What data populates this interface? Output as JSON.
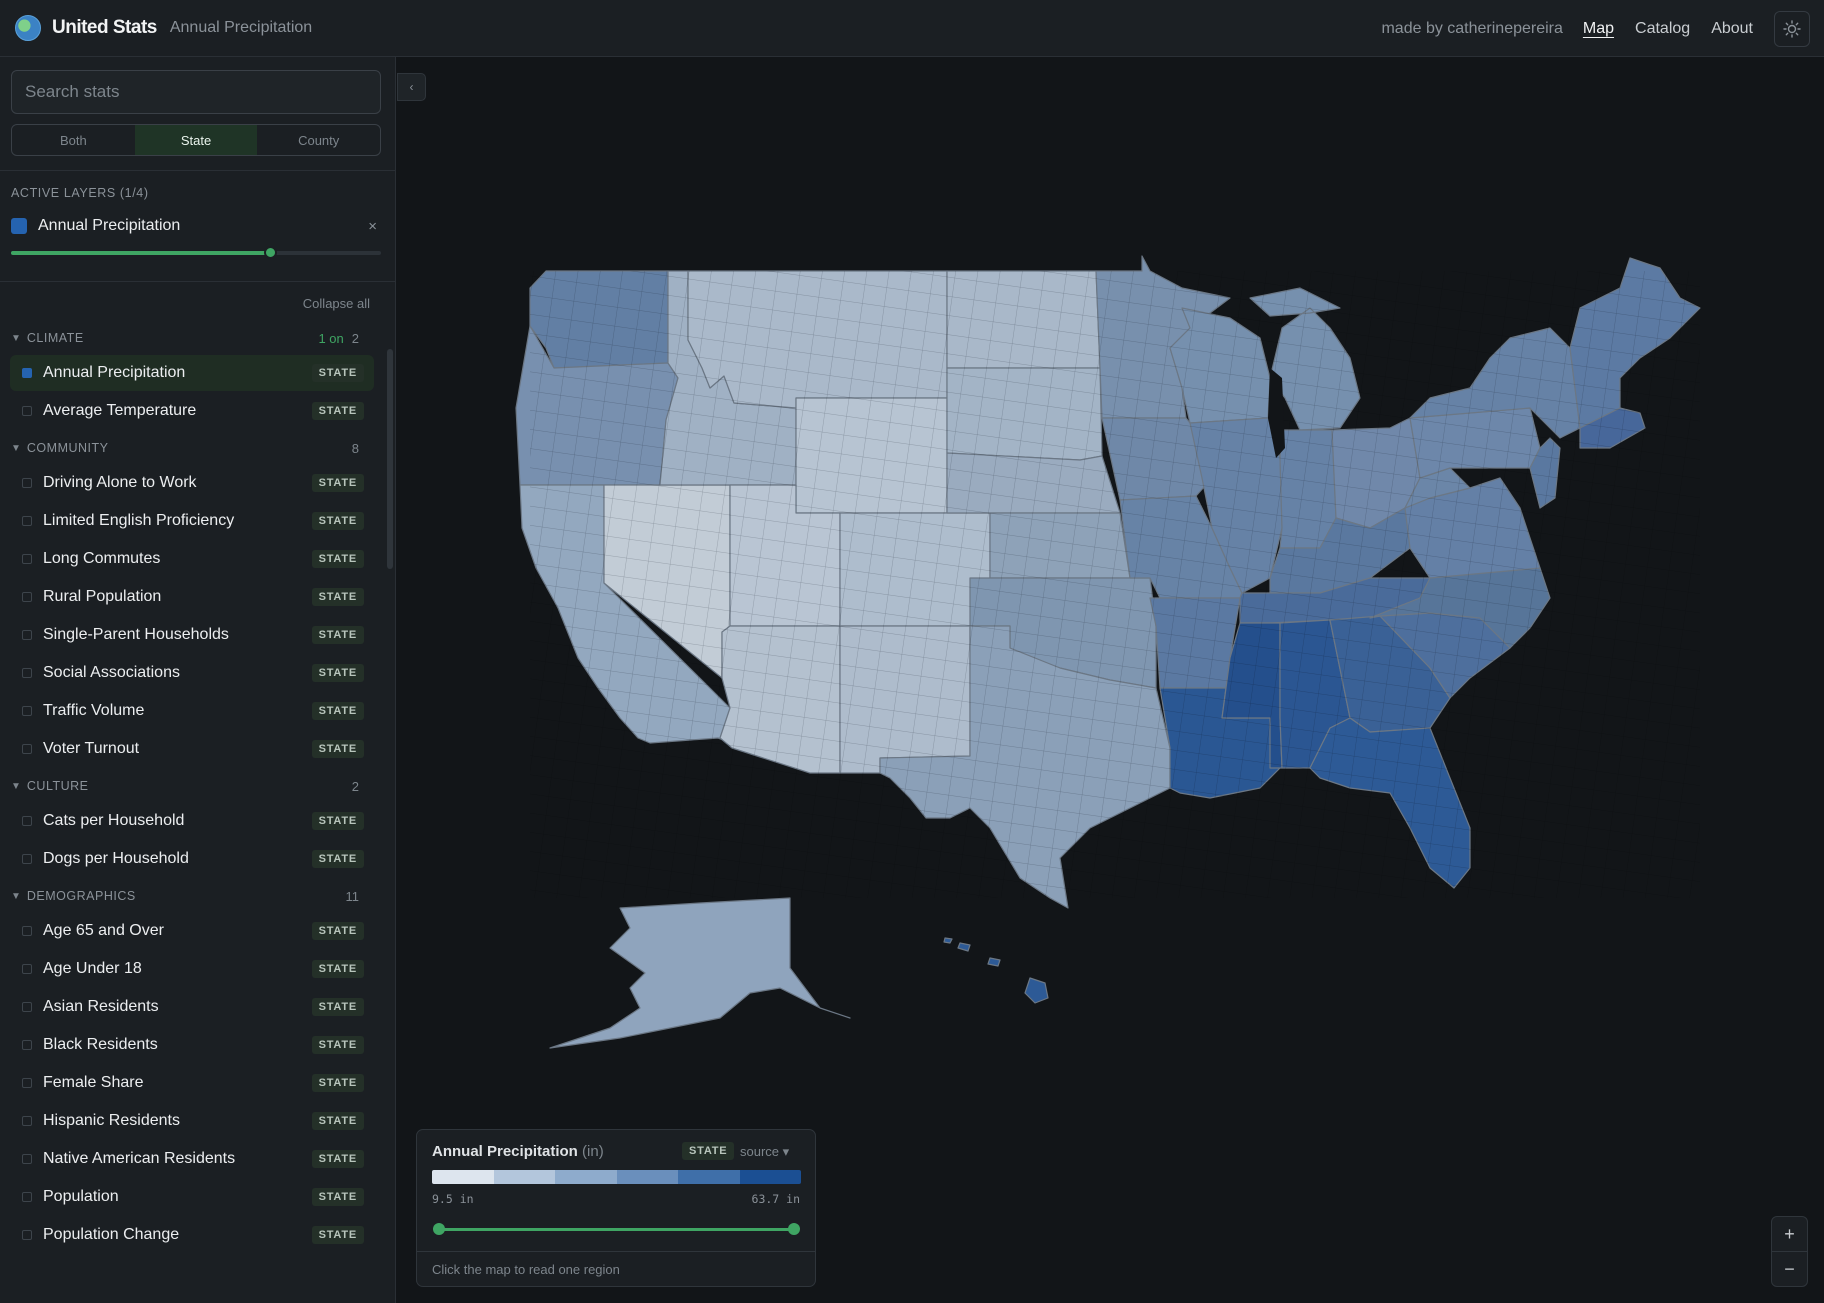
{
  "header": {
    "brand": "United Stats",
    "subtitle": "Annual Precipitation",
    "made_by": "made by catherinepereira",
    "nav": [
      "Map",
      "Catalog",
      "About"
    ],
    "active_nav": "Map",
    "theme_icon": "sun-icon"
  },
  "sidebar": {
    "search_placeholder": "Search stats",
    "geo_tabs": [
      "Both",
      "State",
      "County"
    ],
    "geo_selected": "State",
    "active_layers_title": "ACTIVE LAYERS (1/4)",
    "active_layer": {
      "name": "Annual Precipitation",
      "color": "#2563b0",
      "opacity": 0.7,
      "remove": "×"
    },
    "collapse_all": "Collapse all",
    "categories": [
      {
        "name": "CLIMATE",
        "on": "1 on",
        "count": "2",
        "items": [
          {
            "name": "Annual Precipitation",
            "badge": "STATE",
            "checked": true
          },
          {
            "name": "Average Temperature",
            "badge": "STATE",
            "checked": false
          }
        ]
      },
      {
        "name": "COMMUNITY",
        "on": "",
        "count": "8",
        "items": [
          {
            "name": "Driving Alone to Work",
            "badge": "STATE",
            "checked": false
          },
          {
            "name": "Limited English Proficiency",
            "badge": "STATE",
            "checked": false
          },
          {
            "name": "Long Commutes",
            "badge": "STATE",
            "checked": false
          },
          {
            "name": "Rural Population",
            "badge": "STATE",
            "checked": false
          },
          {
            "name": "Single-Parent Households",
            "badge": "STATE",
            "checked": false
          },
          {
            "name": "Social Associations",
            "badge": "STATE",
            "checked": false
          },
          {
            "name": "Traffic Volume",
            "badge": "STATE",
            "checked": false
          },
          {
            "name": "Voter Turnout",
            "badge": "STATE",
            "checked": false
          }
        ]
      },
      {
        "name": "CULTURE",
        "on": "",
        "count": "2",
        "items": [
          {
            "name": "Cats per Household",
            "badge": "STATE",
            "checked": false
          },
          {
            "name": "Dogs per Household",
            "badge": "STATE",
            "checked": false
          }
        ]
      },
      {
        "name": "DEMOGRAPHICS",
        "on": "",
        "count": "11",
        "items": [
          {
            "name": "Age 65 and Over",
            "badge": "STATE",
            "checked": false
          },
          {
            "name": "Age Under 18",
            "badge": "STATE",
            "checked": false
          },
          {
            "name": "Asian Residents",
            "badge": "STATE",
            "checked": false
          },
          {
            "name": "Black Residents",
            "badge": "STATE",
            "checked": false
          },
          {
            "name": "Female Share",
            "badge": "STATE",
            "checked": false
          },
          {
            "name": "Hispanic Residents",
            "badge": "STATE",
            "checked": false
          },
          {
            "name": "Native American Residents",
            "badge": "STATE",
            "checked": false
          },
          {
            "name": "Population",
            "badge": "STATE",
            "checked": false
          },
          {
            "name": "Population Change",
            "badge": "STATE",
            "checked": false
          }
        ]
      }
    ]
  },
  "map": {
    "sidebar_toggle": "‹",
    "ramp_colors": [
      "#dde5ee",
      "#b3c6dc",
      "#8eabcc",
      "#6a8fbc",
      "#3f6fa9",
      "#1b4f93"
    ]
  },
  "legend": {
    "title": "Annual Precipitation",
    "unit": "(in)",
    "badge": "STATE",
    "source": "source",
    "source_icon": "caret-down-icon",
    "min_label": "9.5 in",
    "max_label": "63.7 in",
    "filter_range": [
      0,
      1
    ],
    "footer": "Click the map to read one region"
  },
  "zoom": {
    "in": "+",
    "out": "−"
  }
}
